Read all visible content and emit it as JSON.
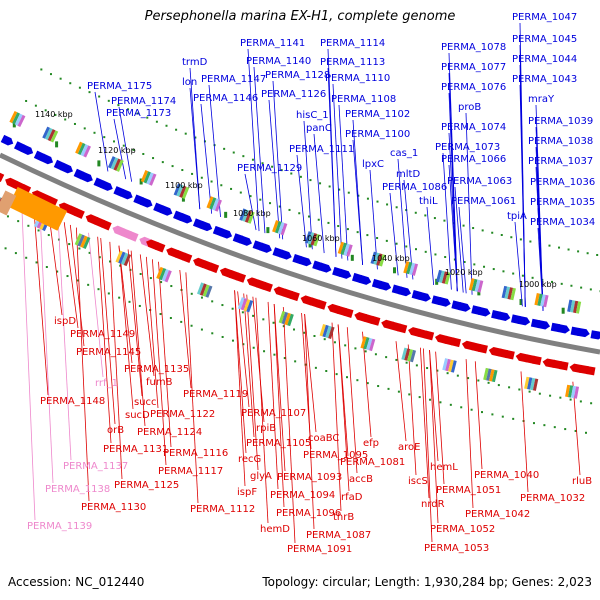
{
  "title": "Persephonella marina EX-H1, complete genome",
  "footer": {
    "accession": "Accession: NC_012440",
    "summary": "Topology: circular; Length: 1,930,284 bp; Genes: 2,023"
  },
  "colors": {
    "forward": "#0000dd",
    "reverse": "#dd0000",
    "pseudo": "#ee88cc",
    "backbone": "#808080",
    "tick": "#228822"
  },
  "scale_labels": [
    "1140 kbp",
    "1120 kbp",
    "1100 kbp",
    "1080 kbp",
    "1060 kbp",
    "1040 kbp",
    "1020 kbp",
    "1000 kbp"
  ],
  "top_labels": [
    "PERMA_1047",
    "PERMA_1045",
    "PERMA_1044",
    "PERMA_1043",
    "mraY",
    "PERMA_1039",
    "PERMA_1038",
    "PERMA_1037",
    "PERMA_1036",
    "PERMA_1035",
    "PERMA_1034",
    "tpiA",
    "PERMA_1078",
    "PERMA_1077",
    "PERMA_1076",
    "proB",
    "PERMA_1074",
    "PERMA_1073",
    "PERMA_1066",
    "PERMA_1063",
    "PERMA_1061",
    "cas_1",
    "mltD",
    "PERMA_1086",
    "thiL",
    "PERMA_1114",
    "PERMA_1113",
    "PERMA_1110",
    "PERMA_1108",
    "PERMA_1102",
    "PERMA_1100",
    "lpxC",
    "PERMA_1141",
    "PERMA_1140",
    "PERMA_1128",
    "PERMA_1126",
    "hisC_1",
    "panC",
    "PERMA_1111",
    "PERMA_1147",
    "PERMA_1146",
    "PERMA_1129",
    "trmD",
    "lon",
    "PERMA_1175",
    "PERMA_1174",
    "PERMA_1173"
  ],
  "bottom_labels": [
    "ispD",
    "PERMA_1149",
    "PERMA_1145",
    "rrf_1",
    "PERMA_1148",
    "PERMA_1135",
    "fumB",
    "succ",
    "sucD",
    "orB",
    "PERMA_1131",
    "PERMA_1137",
    "PERMA_1138",
    "PERMA_1139",
    "PERMA_1122",
    "PERMA_1124",
    "PERMA_1119",
    "PERMA_1116",
    "PERMA_1117",
    "PERMA_1125",
    "PERMA_1130",
    "PERMA_1112",
    "PERMA_1107",
    "rpiB",
    "PERMA_1105",
    "recG",
    "glyA",
    "ispF",
    "hemD",
    "PERMA_1091",
    "coaBC",
    "PERMA_1095",
    "PERMA_1093",
    "PERMA_1094",
    "PERMA_1096",
    "accB",
    "rfaD",
    "thrB",
    "PERMA_1087",
    "efp",
    "PERMA_1081",
    "aroE",
    "iscS",
    "hemL",
    "nrdR",
    "PERMA_1051",
    "PERMA_1052",
    "PERMA_1053",
    "PERMA_1040",
    "PERMA_1042",
    "PERMA_1032",
    "rluB"
  ]
}
